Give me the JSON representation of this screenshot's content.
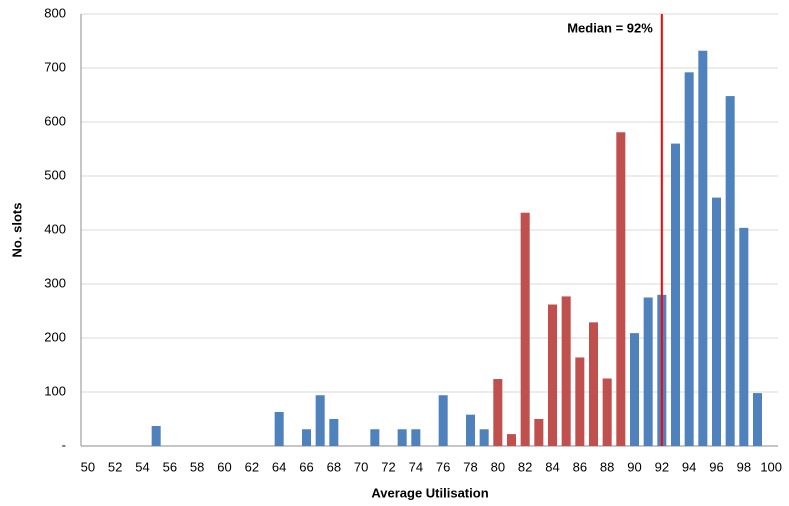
{
  "chart_data": {
    "type": "bar",
    "x_label": "Average Utilisation",
    "y_label": "No. slots",
    "categories": [
      50,
      null,
      52,
      null,
      54,
      null,
      56,
      null,
      58,
      null,
      60,
      null,
      62,
      null,
      64,
      null,
      66,
      null,
      68,
      null,
      70,
      null,
      72,
      null,
      74,
      null,
      76,
      null,
      78,
      null,
      80,
      null,
      82,
      null,
      84,
      null,
      86,
      null,
      88,
      null,
      90,
      null,
      92,
      null,
      94,
      null,
      96,
      null,
      98,
      null,
      100
    ],
    "values": [
      0,
      0,
      0,
      0,
      0,
      37,
      0,
      0,
      0,
      0,
      0,
      0,
      0,
      0,
      63,
      0,
      31,
      94,
      50,
      0,
      0,
      31,
      0,
      31,
      31,
      0,
      94,
      0,
      58,
      31,
      124,
      22,
      432,
      50,
      262,
      277,
      164,
      229,
      125,
      581,
      209,
      275,
      280,
      560,
      692,
      732,
      460,
      648,
      404,
      98,
      0
    ],
    "colors": [
      "#4f81bd",
      "#4f81bd",
      "#4f81bd",
      "#4f81bd",
      "#4f81bd",
      "#4f81bd",
      "#4f81bd",
      "#4f81bd",
      "#4f81bd",
      "#4f81bd",
      "#4f81bd",
      "#4f81bd",
      "#4f81bd",
      "#4f81bd",
      "#4f81bd",
      "#4f81bd",
      "#4f81bd",
      "#4f81bd",
      "#4f81bd",
      "#4f81bd",
      "#4f81bd",
      "#4f81bd",
      "#4f81bd",
      "#4f81bd",
      "#4f81bd",
      "#4f81bd",
      "#4f81bd",
      "#4f81bd",
      "#4f81bd",
      "#4f81bd",
      "#c0504d",
      "#c0504d",
      "#c0504d",
      "#c0504d",
      "#c0504d",
      "#c0504d",
      "#c0504d",
      "#c0504d",
      "#c0504d",
      "#c0504d",
      "#4f81bd",
      "#4f81bd",
      "#4f81bd",
      "#4f81bd",
      "#4f81bd",
      "#4f81bd",
      "#4f81bd",
      "#4f81bd",
      "#4f81bd",
      "#4f81bd",
      "#4f81bd"
    ],
    "ylim": [
      0,
      800
    ],
    "yticks": [
      {
        "value": 0,
        "label": "-"
      },
      100,
      200,
      300,
      400,
      500,
      600,
      700,
      800
    ],
    "grid": true,
    "median": {
      "value": 92,
      "label": "Median = 92%",
      "color": "#ff0000"
    }
  }
}
